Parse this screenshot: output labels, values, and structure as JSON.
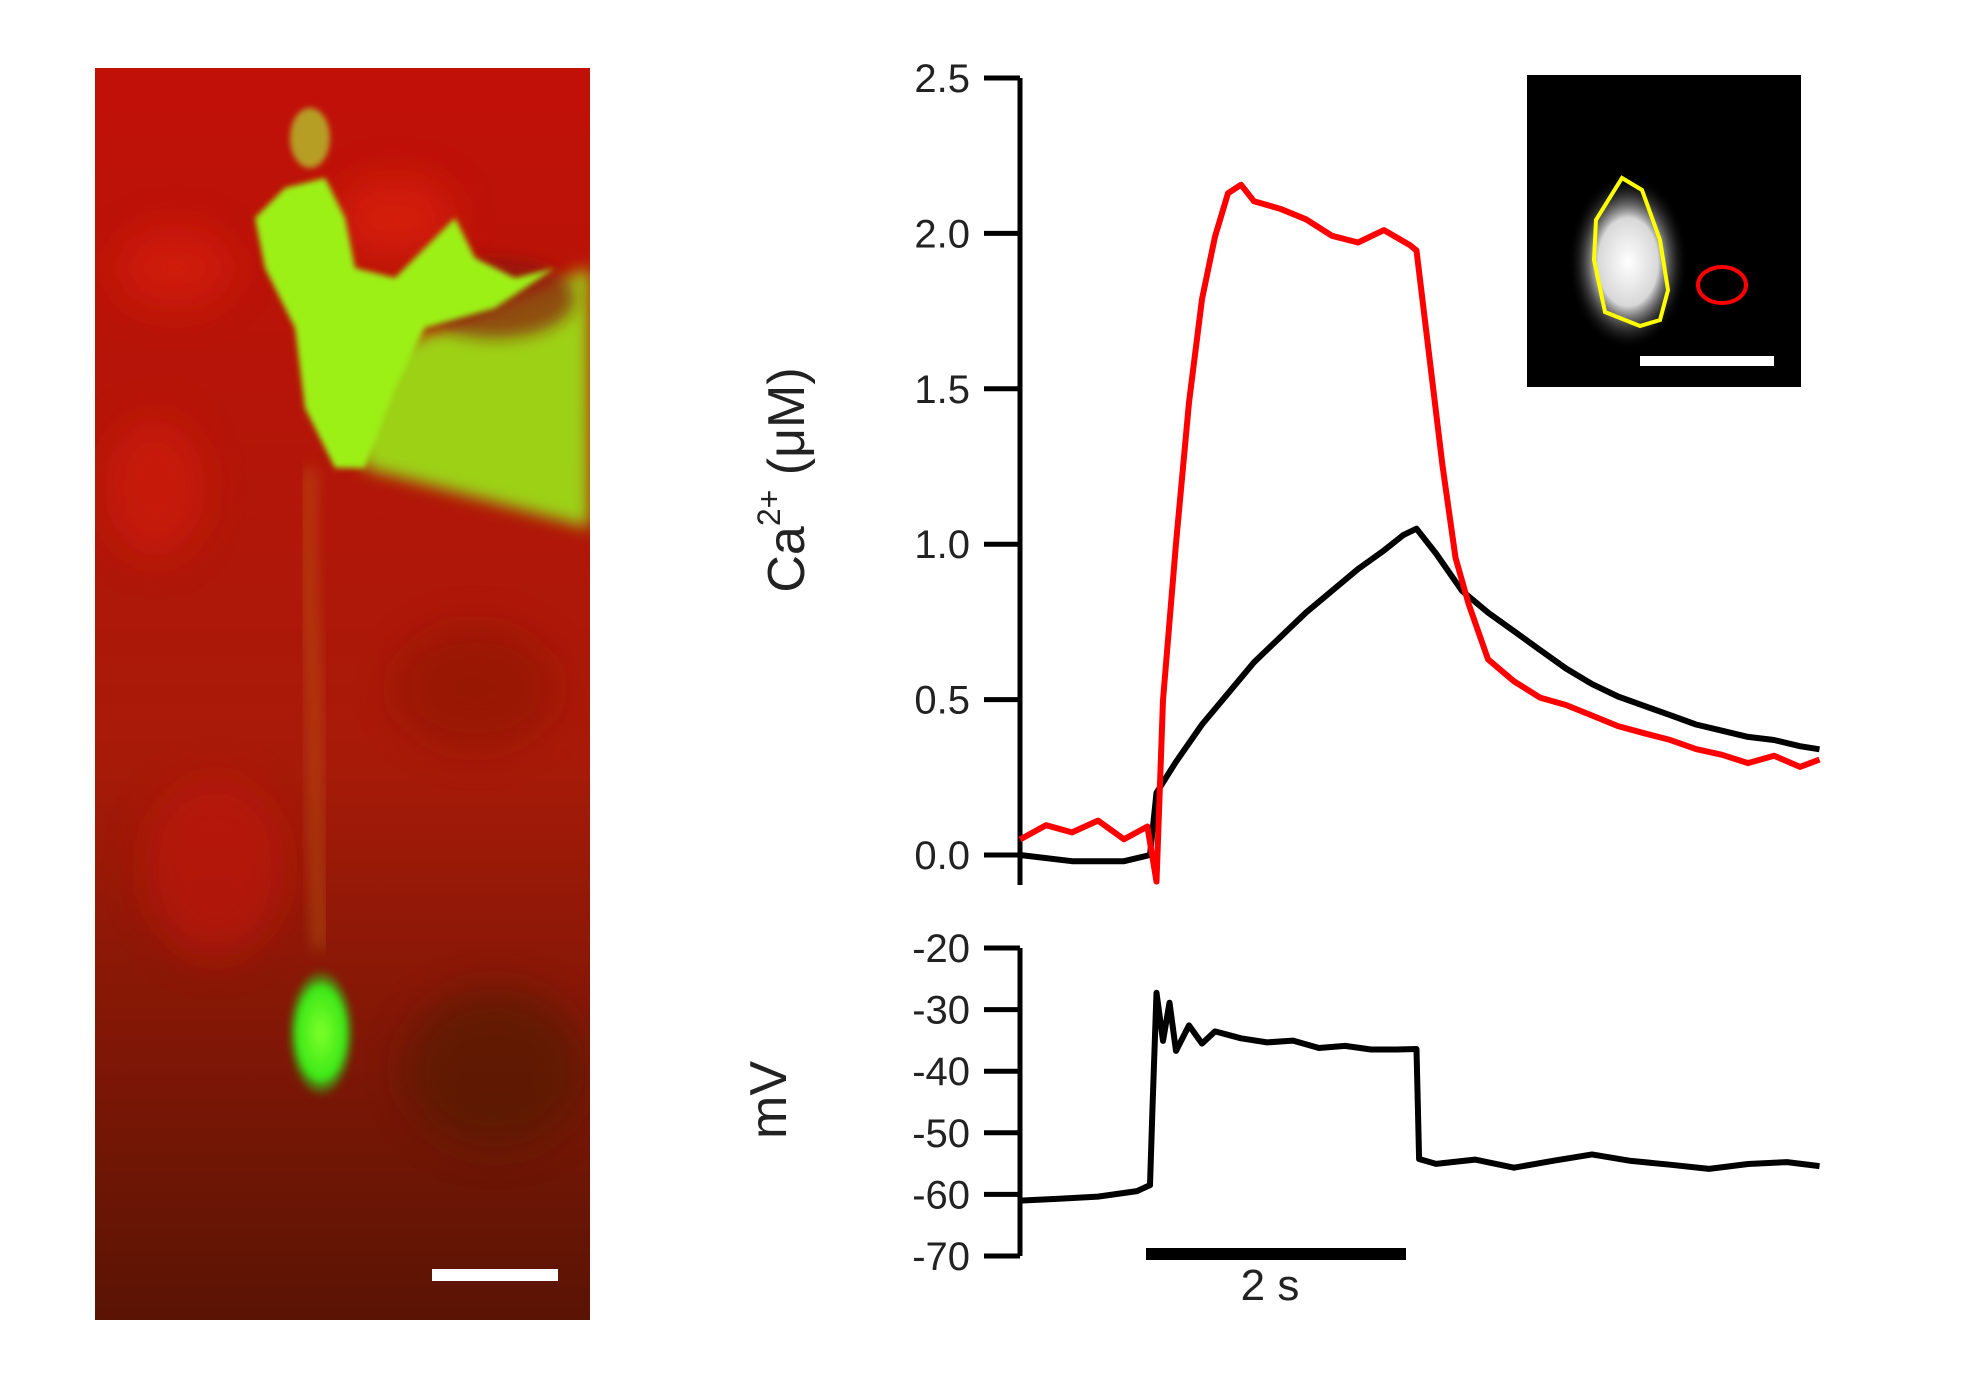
{
  "chart_data": [
    {
      "type": "line",
      "panel": "calcium",
      "ylabel": {
        "base": "Ca",
        "sup": "2+",
        "rest": " (μM)"
      },
      "ylim": [
        0,
        2.5
      ],
      "yticks": [
        "0.0",
        "0.5",
        "1.0",
        "1.5",
        "2.0",
        "2.5"
      ],
      "series": [
        {
          "color": "#000000",
          "x": [
            0,
            0.4,
            0.8,
            1.0,
            1.05,
            1.2,
            1.4,
            1.6,
            1.8,
            2.0,
            2.2,
            2.4,
            2.6,
            2.8,
            2.95,
            3.05,
            3.2,
            3.4,
            3.6,
            3.8,
            4.0,
            4.2,
            4.4,
            4.6,
            4.8,
            5.0,
            5.2,
            5.4,
            5.6,
            5.8,
            6.0,
            6.15
          ],
          "y": [
            0.0,
            -0.02,
            -0.02,
            0.0,
            0.2,
            0.3,
            0.42,
            0.52,
            0.62,
            0.7,
            0.78,
            0.85,
            0.92,
            0.98,
            1.03,
            1.05,
            0.97,
            0.85,
            0.78,
            0.72,
            0.66,
            0.6,
            0.55,
            0.51,
            0.48,
            0.45,
            0.42,
            0.4,
            0.38,
            0.37,
            0.35,
            0.34
          ]
        },
        {
          "color": "#ff0000",
          "x": [
            0,
            0.2,
            0.4,
            0.6,
            0.8,
            0.98,
            1.05,
            1.1,
            1.2,
            1.3,
            1.4,
            1.5,
            1.6,
            1.7,
            1.8,
            2.0,
            2.2,
            2.4,
            2.6,
            2.8,
            3.0,
            3.05,
            3.15,
            3.25,
            3.35,
            3.45,
            3.6,
            3.8,
            4.0,
            4.2,
            4.4,
            4.6,
            4.8,
            5.0,
            5.2,
            5.4,
            5.6,
            5.8,
            6.0,
            6.15
          ],
          "y": [
            0.05,
            0.1,
            0.08,
            0.12,
            0.06,
            0.1,
            -0.08,
            0.5,
            1.0,
            1.45,
            1.78,
            1.98,
            2.12,
            2.15,
            2.1,
            2.08,
            2.05,
            2.0,
            1.98,
            2.02,
            1.97,
            1.95,
            1.6,
            1.25,
            0.95,
            0.8,
            0.62,
            0.55,
            0.5,
            0.48,
            0.45,
            0.42,
            0.4,
            0.38,
            0.35,
            0.33,
            0.3,
            0.32,
            0.28,
            0.3
          ]
        }
      ]
    },
    {
      "type": "line",
      "panel": "voltage",
      "ylabel": "mV",
      "ylim": [
        -70,
        -20
      ],
      "yticks": [
        "-70",
        "-60",
        "-50",
        "-40",
        "-30",
        "-20"
      ],
      "series": [
        {
          "color": "#000000",
          "x": [
            0,
            0.3,
            0.6,
            0.9,
            1.0,
            1.02,
            1.05,
            1.1,
            1.15,
            1.2,
            1.3,
            1.4,
            1.5,
            1.7,
            1.9,
            2.1,
            2.3,
            2.5,
            2.7,
            2.9,
            3.05,
            3.07,
            3.2,
            3.5,
            3.8,
            4.1,
            4.4,
            4.7,
            5.0,
            5.3,
            5.6,
            5.9,
            6.15
          ],
          "y": [
            -61,
            -60.5,
            -60,
            -59,
            -58,
            -45,
            -27,
            -35,
            -29,
            -37,
            -33,
            -36,
            -34,
            -35,
            -35.5,
            -35,
            -36,
            -35.5,
            -36,
            -36,
            -36,
            -54,
            -55,
            -54.5,
            -56,
            -55,
            -54,
            -55,
            -55.5,
            -56,
            -55,
            -54.5,
            -55
          ]
        }
      ]
    }
  ],
  "scale_bar": {
    "label": "2 s"
  }
}
